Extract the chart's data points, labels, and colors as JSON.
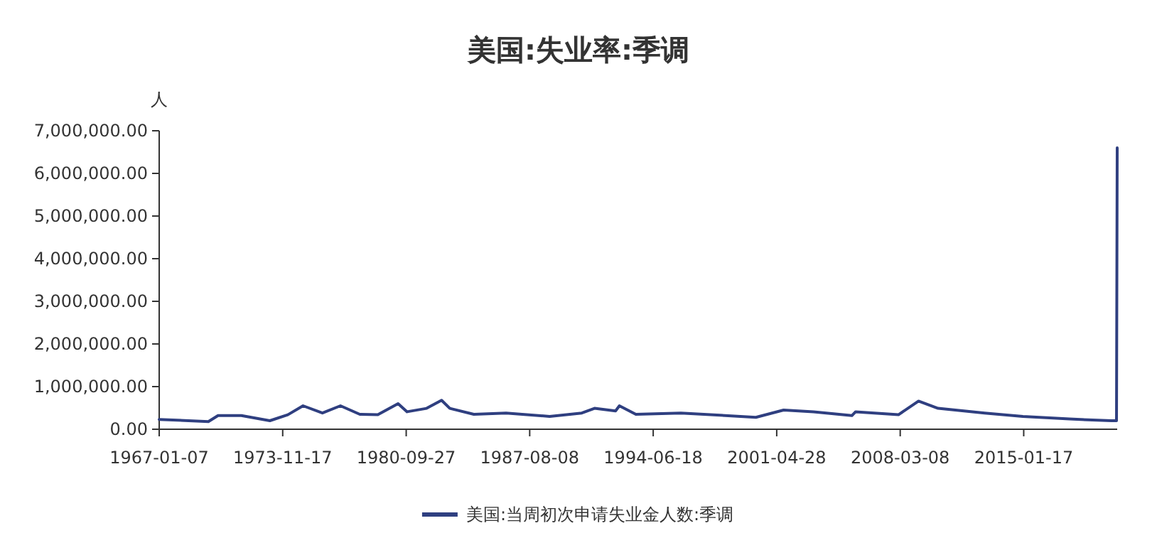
{
  "chart_data": {
    "type": "line",
    "title": "美国:失业率:季调",
    "ylabel": "人",
    "x": [
      "1967-01-07",
      "1969-10-01",
      "1970-04-15",
      "1971-08-01",
      "1973-03-01",
      "1974-03-01",
      "1975-01-04",
      "1976-02-01",
      "1977-02-01",
      "1978-03-01",
      "1979-03-01",
      "1980-04-15",
      "1980-10-15",
      "1981-11-15",
      "1982-09-15",
      "1983-03-01",
      "1984-07-01",
      "1986-04-15",
      "1988-09-15",
      "1990-07-01",
      "1991-03-15",
      "1992-05-15",
      "1992-08-01",
      "1993-07-01",
      "1996-01-01",
      "2000-03-01",
      "2001-09-15",
      "2003-05-15",
      "2005-07-01",
      "2005-09-15",
      "2008-02-01",
      "2009-03-15",
      "2010-04-15",
      "2012-11-15",
      "2015-01-01",
      "2017-08-01",
      "2019-12-01",
      "2020-03-14",
      "2020-03-28"
    ],
    "series": [
      {
        "name": "美国:当周初次申请失业金人数:季调",
        "color": "#2f3f80",
        "values": [
          230000,
          180000,
          320000,
          320000,
          200000,
          340000,
          550000,
          380000,
          550000,
          350000,
          340000,
          600000,
          410000,
          490000,
          680000,
          490000,
          350000,
          380000,
          300000,
          380000,
          490000,
          430000,
          550000,
          350000,
          380000,
          280000,
          450000,
          410000,
          320000,
          410000,
          340000,
          660000,
          490000,
          380000,
          300000,
          240000,
          200000,
          200000,
          6600000
        ]
      }
    ],
    "xlim": [
      "1967-01-07",
      "2020-03-28"
    ],
    "xticks": [
      "1967-01-07",
      "1973-11-17",
      "1980-09-27",
      "1987-08-08",
      "1994-06-18",
      "2001-04-28",
      "2008-03-08",
      "2015-01-17"
    ],
    "ylim": [
      0,
      7000000
    ],
    "yticks": [
      {
        "value": 0,
        "label": "0.00"
      },
      {
        "value": 1000000,
        "label": "1,000,000.00"
      },
      {
        "value": 2000000,
        "label": "2,000,000.00"
      },
      {
        "value": 3000000,
        "label": "3,000,000.00"
      },
      {
        "value": 4000000,
        "label": "4,000,000.00"
      },
      {
        "value": 5000000,
        "label": "5,000,000.00"
      },
      {
        "value": 6000000,
        "label": "6,000,000.00"
      },
      {
        "value": 7000000,
        "label": "7,000,000.00"
      }
    ],
    "grid": false,
    "legend": "bottom",
    "marker": "none",
    "line_style": "solid"
  }
}
